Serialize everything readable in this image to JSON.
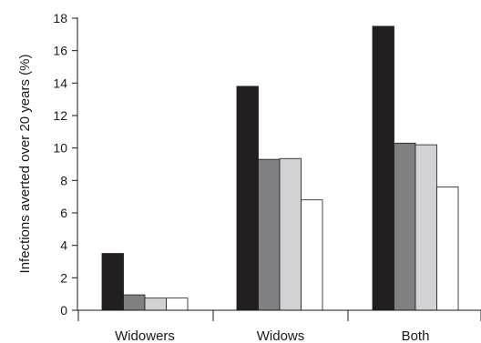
{
  "chart_data": {
    "type": "bar",
    "title": "",
    "xlabel": "",
    "ylabel": "Infections averted over 20 years (%)",
    "categories": [
      "Widowers",
      "Widows",
      "Both"
    ],
    "ylim": [
      0,
      18
    ],
    "yticks": [
      0,
      2,
      4,
      6,
      8,
      10,
      12,
      14,
      16,
      18
    ],
    "grid": false,
    "legend": "none",
    "series": [
      {
        "values": [
          3.5,
          13.8,
          17.5
        ],
        "color": "#231f20"
      },
      {
        "values": [
          0.95,
          9.3,
          10.3
        ],
        "color": "#808083"
      },
      {
        "values": [
          0.75,
          9.35,
          10.2
        ],
        "color": "#d1d2d4"
      },
      {
        "values": [
          0.75,
          6.8,
          7.6
        ],
        "color": "#ffffff"
      }
    ]
  }
}
